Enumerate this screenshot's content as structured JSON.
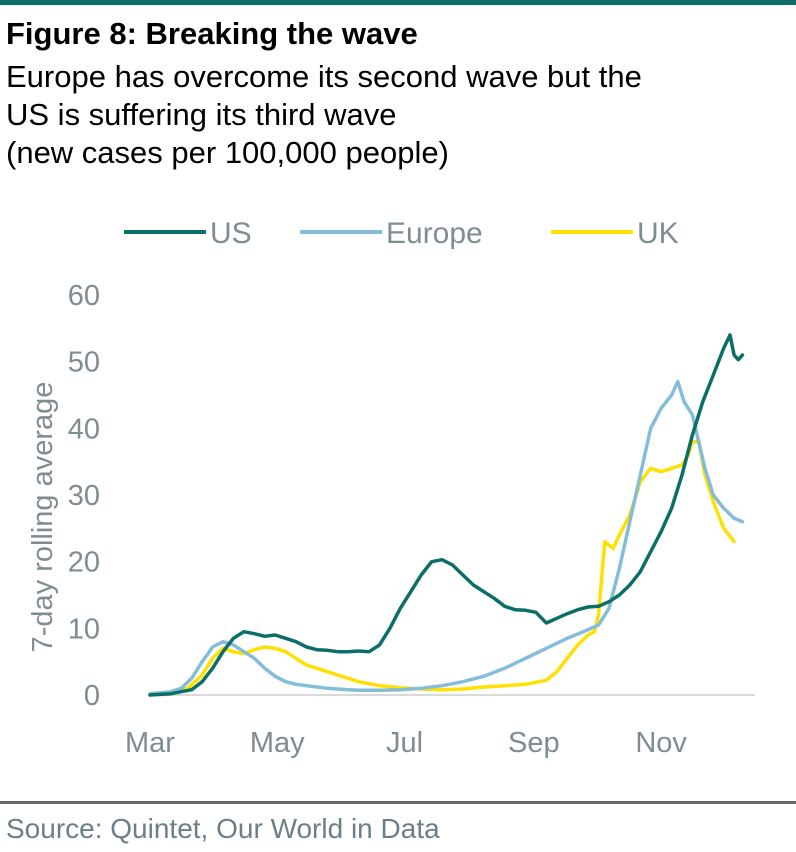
{
  "header": {
    "title": "Figure 8: Breaking the wave",
    "subtitle_lines": [
      "Europe has overcome its second wave but the",
      "US is suffering its third wave",
      "(new cases per 100,000 people)"
    ]
  },
  "footer": {
    "source": "Source: Quintet, Our World in Data"
  },
  "chart_data": {
    "type": "line",
    "title": "Figure 8: Breaking the wave",
    "ylabel": "7-day rolling average",
    "xlabel": "",
    "x_tick_labels": [
      "Mar",
      "May",
      "Jul",
      "Sep",
      "Nov"
    ],
    "x_ticks": [
      0,
      61,
      122,
      184,
      245
    ],
    "y_ticks": [
      0,
      10,
      20,
      30,
      40,
      50,
      60
    ],
    "ylim": [
      0,
      60
    ],
    "xlim": [
      0,
      290
    ],
    "x_unit": "days since Mar 1",
    "legend_position": "top",
    "grid": false,
    "series": [
      {
        "name": "US",
        "color": "#0b6e68",
        "points": [
          [
            0,
            0
          ],
          [
            10,
            0.2
          ],
          [
            20,
            0.8
          ],
          [
            25,
            2
          ],
          [
            30,
            4
          ],
          [
            35,
            6.5
          ],
          [
            40,
            8.5
          ],
          [
            45,
            9.5
          ],
          [
            50,
            9.2
          ],
          [
            55,
            8.8
          ],
          [
            60,
            9.0
          ],
          [
            65,
            8.5
          ],
          [
            70,
            8.0
          ],
          [
            75,
            7.2
          ],
          [
            80,
            6.8
          ],
          [
            85,
            6.7
          ],
          [
            90,
            6.5
          ],
          [
            95,
            6.5
          ],
          [
            100,
            6.6
          ],
          [
            105,
            6.5
          ],
          [
            110,
            7.5
          ],
          [
            115,
            10
          ],
          [
            120,
            13
          ],
          [
            125,
            15.5
          ],
          [
            130,
            18
          ],
          [
            135,
            20
          ],
          [
            140,
            20.3
          ],
          [
            145,
            19.5
          ],
          [
            150,
            18
          ],
          [
            155,
            16.5
          ],
          [
            160,
            15.5
          ],
          [
            165,
            14.5
          ],
          [
            170,
            13.3
          ],
          [
            175,
            12.8
          ],
          [
            180,
            12.7
          ],
          [
            185,
            12.4
          ],
          [
            190,
            10.8
          ],
          [
            195,
            11.5
          ],
          [
            200,
            12.2
          ],
          [
            205,
            12.8
          ],
          [
            210,
            13.2
          ],
          [
            215,
            13.3
          ],
          [
            220,
            14
          ],
          [
            225,
            15
          ],
          [
            230,
            16.5
          ],
          [
            235,
            18.5
          ],
          [
            240,
            21.5
          ],
          [
            245,
            24.5
          ],
          [
            250,
            28
          ],
          [
            255,
            33
          ],
          [
            260,
            39
          ],
          [
            265,
            44
          ],
          [
            270,
            48
          ],
          [
            275,
            52
          ],
          [
            278,
            54
          ],
          [
            280,
            51
          ],
          [
            282,
            50.3
          ],
          [
            284,
            51
          ]
        ]
      },
      {
        "name": "Europe",
        "color": "#83bdd9",
        "points": [
          [
            0,
            0.2
          ],
          [
            10,
            0.5
          ],
          [
            15,
            1
          ],
          [
            20,
            2.5
          ],
          [
            25,
            5
          ],
          [
            30,
            7.2
          ],
          [
            35,
            8
          ],
          [
            40,
            7.5
          ],
          [
            45,
            6.5
          ],
          [
            50,
            5.5
          ],
          [
            55,
            4
          ],
          [
            60,
            2.8
          ],
          [
            65,
            2
          ],
          [
            70,
            1.6
          ],
          [
            75,
            1.4
          ],
          [
            80,
            1.2
          ],
          [
            85,
            1.0
          ],
          [
            90,
            0.9
          ],
          [
            95,
            0.8
          ],
          [
            100,
            0.7
          ],
          [
            110,
            0.7
          ],
          [
            120,
            0.8
          ],
          [
            130,
            1.0
          ],
          [
            140,
            1.4
          ],
          [
            150,
            2
          ],
          [
            160,
            2.8
          ],
          [
            170,
            4
          ],
          [
            180,
            5.5
          ],
          [
            190,
            7
          ],
          [
            200,
            8.5
          ],
          [
            210,
            9.8
          ],
          [
            215,
            10.5
          ],
          [
            220,
            13
          ],
          [
            225,
            19
          ],
          [
            230,
            26
          ],
          [
            235,
            33
          ],
          [
            240,
            40
          ],
          [
            245,
            43
          ],
          [
            250,
            45
          ],
          [
            253,
            47
          ],
          [
            256,
            44
          ],
          [
            260,
            42
          ],
          [
            263,
            38
          ],
          [
            266,
            34
          ],
          [
            270,
            30
          ],
          [
            275,
            28
          ],
          [
            280,
            26.5
          ],
          [
            284,
            26
          ]
        ]
      },
      {
        "name": "UK",
        "color": "#ffe000",
        "points": [
          [
            0,
            0
          ],
          [
            10,
            0.3
          ],
          [
            18,
            1
          ],
          [
            25,
            3
          ],
          [
            30,
            5.5
          ],
          [
            35,
            7
          ],
          [
            40,
            6.5
          ],
          [
            45,
            6.2
          ],
          [
            50,
            6.8
          ],
          [
            55,
            7.2
          ],
          [
            60,
            7.0
          ],
          [
            65,
            6.5
          ],
          [
            70,
            5.5
          ],
          [
            75,
            4.5
          ],
          [
            80,
            4
          ],
          [
            85,
            3.5
          ],
          [
            90,
            3
          ],
          [
            95,
            2.5
          ],
          [
            100,
            2
          ],
          [
            110,
            1.4
          ],
          [
            120,
            1.1
          ],
          [
            130,
            0.9
          ],
          [
            140,
            0.8
          ],
          [
            150,
            0.9
          ],
          [
            160,
            1.2
          ],
          [
            170,
            1.4
          ],
          [
            180,
            1.6
          ],
          [
            190,
            2.2
          ],
          [
            195,
            3.5
          ],
          [
            200,
            5.5
          ],
          [
            205,
            7.5
          ],
          [
            210,
            9
          ],
          [
            213,
            9.5
          ],
          [
            215,
            12
          ],
          [
            218,
            23
          ],
          [
            222,
            22
          ],
          [
            225,
            24
          ],
          [
            230,
            27
          ],
          [
            235,
            32
          ],
          [
            240,
            34
          ],
          [
            245,
            33.5
          ],
          [
            250,
            34
          ],
          [
            255,
            34.5
          ],
          [
            258,
            36
          ],
          [
            260,
            38
          ],
          [
            263,
            38
          ],
          [
            266,
            33
          ],
          [
            270,
            29
          ],
          [
            275,
            25
          ],
          [
            280,
            23
          ]
        ]
      }
    ]
  }
}
